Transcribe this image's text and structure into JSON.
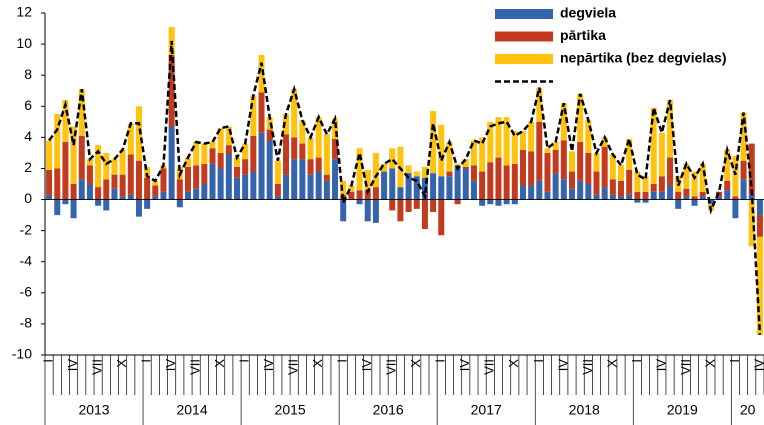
{
  "chart_data": {
    "type": "bar",
    "categories": [
      "I",
      null,
      null,
      "IV",
      null,
      null,
      "VII",
      null,
      null,
      "X",
      null,
      null,
      "I",
      null,
      null,
      "IV",
      null,
      null,
      "VII",
      null,
      null,
      "X",
      null,
      null,
      "I",
      null,
      null,
      "IV",
      null,
      null,
      "VII",
      null,
      null,
      "X",
      null,
      null,
      "I",
      null,
      null,
      "IV",
      null,
      null,
      "VII",
      null,
      null,
      "X",
      null,
      null,
      "I",
      null,
      null,
      "IV",
      null,
      null,
      "VII",
      null,
      null,
      "X",
      null,
      null,
      "I",
      null,
      null,
      "IV",
      null,
      null,
      "VII",
      null,
      null,
      "X",
      null,
      null,
      "I",
      null,
      null,
      "IV",
      null,
      null,
      "VII",
      null,
      null,
      "X",
      null,
      null,
      "I",
      null,
      null,
      "IV"
    ],
    "years": [
      "2013",
      "2014",
      "2015",
      "2016",
      "2017",
      "2018",
      "2019",
      "20"
    ],
    "series": [
      {
        "name": "degviela",
        "color": "#3564ad",
        "values": [
          0.3,
          -1.0,
          -0.3,
          -1.2,
          1.3,
          1.0,
          -0.4,
          -0.7,
          0.7,
          0.2,
          0.3,
          -1.1,
          -0.6,
          0.2,
          0.5,
          4.7,
          -0.5,
          0.5,
          0.7,
          1.0,
          2.3,
          2.0,
          2.9,
          1.4,
          1.6,
          1.8,
          4.3,
          3.8,
          0.2,
          1.6,
          2.6,
          2.6,
          1.6,
          1.8,
          1.2,
          2.6,
          -1.4,
          0.0,
          -0.3,
          -1.4,
          -1.5,
          1.8,
          2.0,
          0.8,
          1.7,
          1.5,
          1.4,
          1.7,
          1.5,
          1.5,
          2.2,
          2.0,
          1.2,
          -0.4,
          -0.3,
          -0.4,
          -0.3,
          -0.3,
          0.9,
          0.9,
          1.2,
          0.5,
          1.7,
          1.3,
          0.7,
          1.2,
          1.0,
          0.3,
          0.8,
          0.3,
          0.2,
          0.3,
          -0.2,
          -0.2,
          0.5,
          0.5,
          0.9,
          -0.6,
          0.2,
          -0.4,
          0.2,
          -0.3,
          0.2,
          0.6,
          -1.2,
          1.3,
          0.3,
          -1.0
        ]
      },
      {
        "name": "pārtika",
        "color": "#c23b1e",
        "values": [
          1.6,
          2.0,
          3.7,
          1.0,
          2.8,
          1.2,
          0.8,
          1.3,
          0.9,
          1.4,
          2.6,
          2.5,
          1.4,
          0.7,
          1.5,
          4.6,
          1.3,
          1.6,
          1.5,
          1.3,
          1.0,
          1.0,
          0.6,
          0.7,
          1.0,
          2.3,
          2.6,
          0.7,
          0.8,
          2.6,
          1.4,
          1.0,
          1.0,
          0.9,
          0.4,
          1.3,
          0.3,
          0.5,
          0.6,
          0.6,
          0.8,
          0.0,
          -0.7,
          -1.4,
          -0.8,
          -0.6,
          -1.9,
          -0.8,
          -2.3,
          0.3,
          -0.3,
          0.1,
          1.0,
          1.8,
          2.4,
          2.7,
          2.2,
          2.3,
          2.3,
          2.2,
          3.8,
          2.5,
          1.5,
          2.5,
          1.1,
          2.5,
          2.0,
          1.5,
          2.6,
          1.0,
          1.0,
          1.6,
          0.5,
          0.5,
          0.5,
          1.0,
          1.8,
          0.5,
          0.5,
          0.2,
          0.3,
          0.0,
          0.3,
          0.6,
          0.2,
          1.2,
          3.3,
          -1.4
        ]
      },
      {
        "name": "nepārtika (bez degvielas)",
        "color": "#ffc20e",
        "values": [
          1.9,
          3.5,
          2.7,
          3.7,
          3.0,
          0.4,
          2.7,
          1.7,
          1.0,
          1.6,
          2.0,
          3.5,
          0.7,
          0.3,
          0.2,
          1.8,
          0.8,
          0.6,
          1.5,
          1.3,
          0.4,
          1.6,
          1.2,
          0.6,
          1.0,
          2.6,
          2.4,
          0.8,
          1.5,
          1.3,
          3.1,
          1.5,
          1.4,
          2.6,
          2.6,
          1.3,
          0.9,
          0.4,
          2.7,
          1.3,
          2.2,
          0.5,
          1.3,
          2.6,
          0.5,
          0.3,
          0.7,
          4.0,
          3.3,
          1.9,
          0.1,
          0.5,
          1.6,
          2.2,
          2.6,
          2.6,
          3.1,
          2.1,
          1.2,
          1.9,
          2.2,
          0.3,
          0.5,
          2.4,
          1.3,
          3.1,
          2.1,
          1.2,
          0.6,
          1.6,
          1.0,
          2.0,
          1.3,
          1.0,
          4.9,
          2.8,
          3.7,
          1.0,
          1.6,
          1.6,
          1.8,
          -0.4,
          0.0,
          2.0,
          2.6,
          3.1,
          -3.0,
          -6.3
        ]
      }
    ],
    "line": {
      "color": "#000000",
      "values": [
        3.8,
        4.5,
        6.1,
        3.5,
        7.1,
        2.6,
        3.1,
        2.3,
        2.6,
        3.2,
        4.9,
        4.9,
        1.5,
        1.2,
        2.2,
        10.2,
        1.6,
        2.7,
        3.7,
        3.6,
        3.7,
        4.6,
        4.7,
        2.7,
        3.6,
        6.7,
        8.8,
        5.3,
        2.5,
        5.5,
        7.1,
        5.1,
        4.0,
        5.3,
        4.2,
        5.2,
        -0.2,
        0.9,
        3.0,
        0.5,
        1.5,
        2.3,
        2.6,
        2.0,
        1.4,
        1.2,
        0.2,
        4.9,
        2.5,
        3.7,
        2.0,
        2.6,
        3.8,
        3.6,
        4.7,
        4.9,
        5.0,
        4.1,
        4.4,
        5.0,
        7.2,
        3.3,
        3.7,
        6.2,
        3.1,
        6.8,
        5.1,
        3.0,
        4.0,
        2.9,
        2.2,
        3.9,
        1.6,
        1.3,
        5.9,
        4.3,
        6.4,
        0.9,
        2.3,
        1.4,
        2.3,
        -0.7,
        0.5,
        3.2,
        1.6,
        5.6,
        0.6,
        -8.7
      ]
    },
    "stacked": true,
    "ylim": [
      -10,
      12
    ],
    "yticks": [
      -10,
      -8,
      -6,
      -4,
      -2,
      0,
      2,
      4,
      6,
      8,
      10,
      12
    ],
    "grid": false,
    "legend": "upper right"
  }
}
